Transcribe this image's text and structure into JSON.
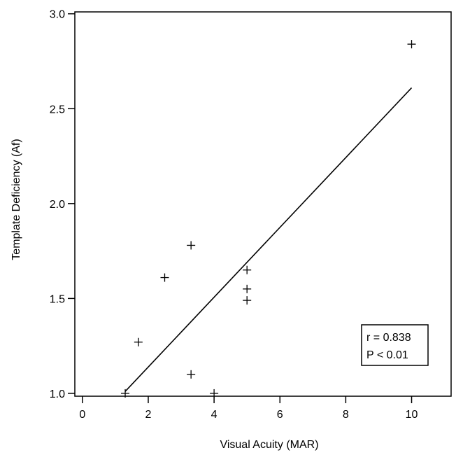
{
  "chart_data": {
    "type": "scatter",
    "xlabel": "Visual Acuity (MAR)",
    "ylabel": "Template Deficiency (Af)",
    "xlim": [
      0,
      11
    ],
    "ylim": [
      1.0,
      3.0
    ],
    "xticks": [
      0,
      2,
      4,
      6,
      8,
      10
    ],
    "yticks": [
      1.0,
      1.5,
      2.0,
      2.5,
      3.0
    ],
    "xtick_labels": [
      "0",
      "2",
      "4",
      "6",
      "8",
      "10"
    ],
    "ytick_labels": [
      "1.0",
      "1.5",
      "2.0",
      "2.5",
      "3.0"
    ],
    "grid": false,
    "marker": "plus",
    "points": [
      {
        "x": 1.3,
        "y": 1.0
      },
      {
        "x": 1.7,
        "y": 1.27
      },
      {
        "x": 2.5,
        "y": 1.61
      },
      {
        "x": 3.3,
        "y": 1.78
      },
      {
        "x": 3.3,
        "y": 1.1
      },
      {
        "x": 4.0,
        "y": 1.0
      },
      {
        "x": 5.0,
        "y": 1.65
      },
      {
        "x": 5.0,
        "y": 1.55
      },
      {
        "x": 5.0,
        "y": 1.49
      },
      {
        "x": 10.0,
        "y": 2.84
      }
    ],
    "fit_line": {
      "x": [
        1.3,
        10.0
      ],
      "y": [
        1.01,
        2.61
      ]
    },
    "annotation": {
      "lines": [
        "r = 0.838",
        "P < 0.01"
      ],
      "placement": "lower-right"
    }
  }
}
